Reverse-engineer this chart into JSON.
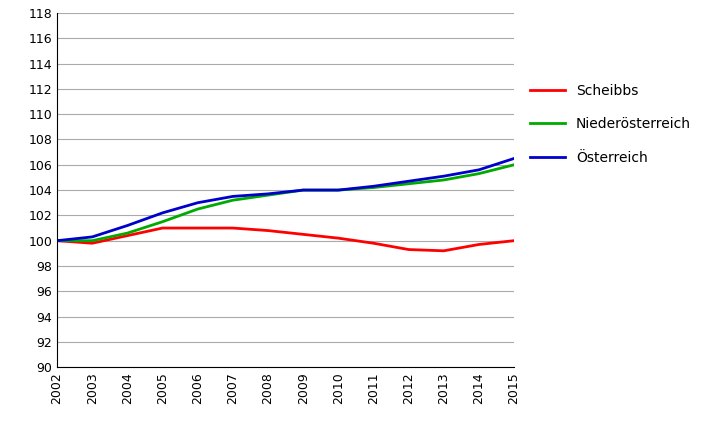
{
  "years": [
    2002,
    2003,
    2004,
    2005,
    2006,
    2007,
    2008,
    2009,
    2010,
    2011,
    2012,
    2013,
    2014,
    2015
  ],
  "scheibbs": [
    100.0,
    99.8,
    100.4,
    101.0,
    101.0,
    101.0,
    100.8,
    100.5,
    100.2,
    99.8,
    99.3,
    99.2,
    99.7,
    100.0
  ],
  "niederoesterreich": [
    100.0,
    100.0,
    100.6,
    101.5,
    102.5,
    103.2,
    103.6,
    104.0,
    104.0,
    104.2,
    104.5,
    104.8,
    105.3,
    106.0
  ],
  "oesterreich": [
    100.0,
    100.3,
    101.2,
    102.2,
    103.0,
    103.5,
    103.7,
    104.0,
    104.0,
    104.3,
    104.7,
    105.1,
    105.6,
    106.5
  ],
  "line_colors": {
    "scheibbs": "#ff0000",
    "niederoesterreich": "#00aa00",
    "oesterreich": "#0000cc"
  },
  "legend_labels": {
    "scheibbs": "Scheibbs",
    "niederoesterreich": "Niederösterreich",
    "oesterreich": "Österreich"
  },
  "ylim": [
    90,
    118
  ],
  "yticks": [
    90,
    92,
    94,
    96,
    98,
    100,
    102,
    104,
    106,
    108,
    110,
    112,
    114,
    116,
    118
  ],
  "grid_color": "#aaaaaa",
  "background_color": "#ffffff",
  "line_width": 2.0,
  "tick_fontsize": 9,
  "legend_fontsize": 10
}
